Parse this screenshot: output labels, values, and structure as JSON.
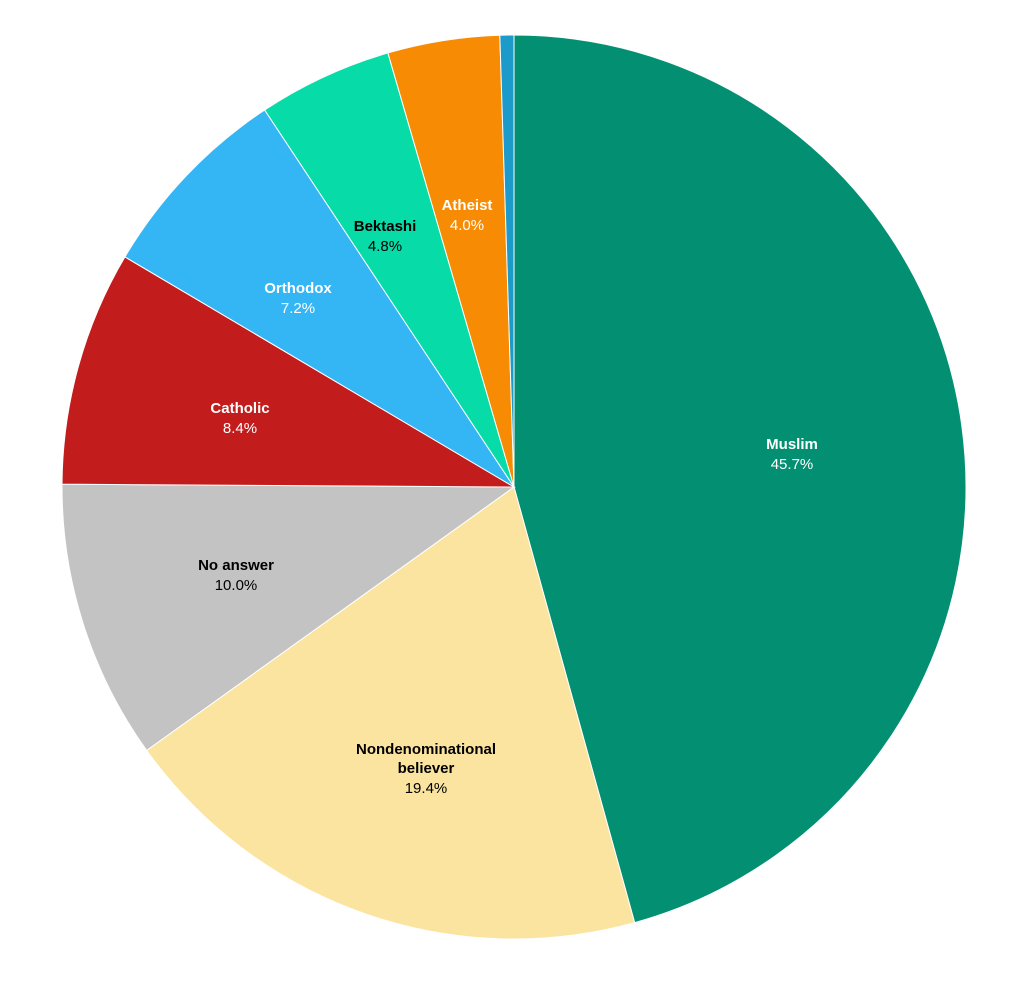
{
  "chart_data": {
    "type": "pie",
    "start_angle_deg": 0,
    "direction": "clockwise",
    "slices": [
      {
        "label": "Muslim",
        "value": 45.7,
        "value_label": "45.7%",
        "color": "#039072",
        "text_color": "#ffffff"
      },
      {
        "label": "Nondenominational believer",
        "label_lines": [
          "Nondenominational",
          "believer"
        ],
        "value": 19.4,
        "value_label": "19.4%",
        "color": "#fae49f",
        "text_color": "#000000"
      },
      {
        "label": "No answer",
        "value": 10.0,
        "value_label": "10.0%",
        "color": "#c3c3c3",
        "text_color": "#000000"
      },
      {
        "label": "Catholic",
        "value": 8.4,
        "value_label": "8.4%",
        "color": "#c21c1c",
        "text_color": "#ffffff"
      },
      {
        "label": "Orthodox",
        "value": 7.2,
        "value_label": "7.2%",
        "color": "#34b5f4",
        "text_color": "#ffffff"
      },
      {
        "label": "Bektashi",
        "value": 4.8,
        "value_label": "4.8%",
        "color": "#07dba8",
        "text_color": "#000000"
      },
      {
        "label": "Atheist",
        "value": 4.0,
        "value_label": "4.0%",
        "color": "#f78c04",
        "text_color": "#ffffff"
      },
      {
        "label": "",
        "value": 0.5,
        "value_label": "",
        "color": "#1c9ac9",
        "text_color": "#ffffff"
      }
    ]
  }
}
